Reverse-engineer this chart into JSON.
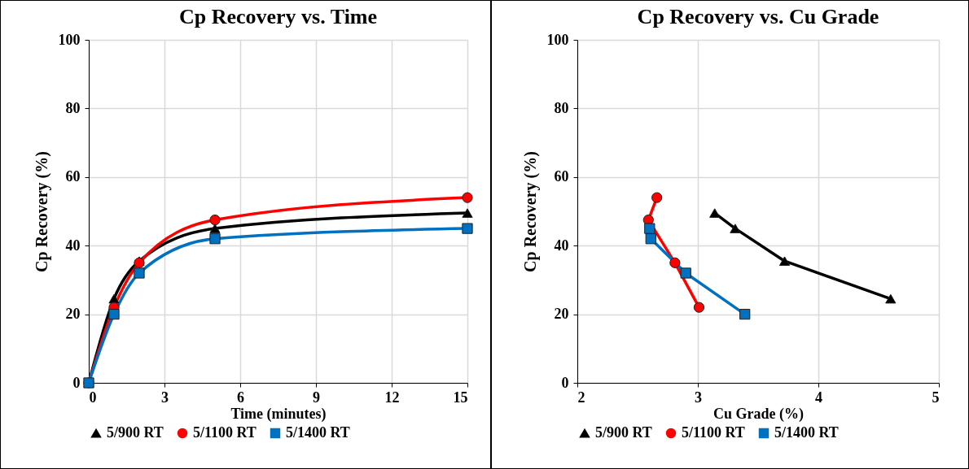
{
  "chart_data": [
    {
      "type": "line",
      "title": "Cp Recovery vs. Time",
      "xlabel": "Time (minutes)",
      "ylabel": "Cp Recovery (%)",
      "xlim": [
        0,
        15
      ],
      "xticks": [
        0,
        3,
        6,
        9,
        12,
        15
      ],
      "ylim": [
        0,
        100
      ],
      "yticks": [
        0,
        20,
        40,
        60,
        80,
        100
      ],
      "grid": true,
      "legend": "bottom",
      "line_style": "solid",
      "series": [
        {
          "name": "5/900 RT",
          "color": "#000000",
          "marker": "triangle",
          "x": [
            0,
            1,
            2,
            5,
            15
          ],
          "values": [
            0,
            24.5,
            35.5,
            45,
            49.5
          ]
        },
        {
          "name": "5/1100 RT",
          "color": "#ff0000",
          "marker": "circle",
          "x": [
            0,
            1,
            2,
            5,
            15
          ],
          "values": [
            0,
            22,
            35,
            47.5,
            54
          ]
        },
        {
          "name": "5/1400 RT",
          "color": "#0070c0",
          "marker": "square",
          "x": [
            0,
            1,
            2,
            5,
            15
          ],
          "values": [
            0,
            20,
            32,
            42,
            45
          ]
        }
      ]
    },
    {
      "type": "line",
      "title": "Cp Recovery vs. Cu Grade",
      "xlabel": "Cu Grade (%)",
      "ylabel": "Cp Recovery (%)",
      "xlim": [
        2,
        5
      ],
      "xticks": [
        2,
        3,
        4,
        5
      ],
      "ylim": [
        0,
        100
      ],
      "yticks": [
        0,
        20,
        40,
        60,
        80,
        100
      ],
      "grid": true,
      "legend": "bottom",
      "line_style": "solid",
      "series": [
        {
          "name": "5/900 RT",
          "color": "#000000",
          "marker": "triangle",
          "x": [
            4.6,
            3.72,
            3.31,
            3.14
          ],
          "values": [
            24.5,
            35.5,
            45,
            49.5
          ]
        },
        {
          "name": "5/1100 RT",
          "color": "#ff0000",
          "marker": "circle",
          "x": [
            3.01,
            2.81,
            2.59,
            2.66
          ],
          "values": [
            22,
            35,
            47.5,
            54
          ]
        },
        {
          "name": "5/1400 RT",
          "color": "#0070c0",
          "marker": "square",
          "x": [
            3.39,
            2.9,
            2.61,
            2.6
          ],
          "values": [
            20,
            32,
            42,
            45
          ]
        }
      ]
    }
  ]
}
